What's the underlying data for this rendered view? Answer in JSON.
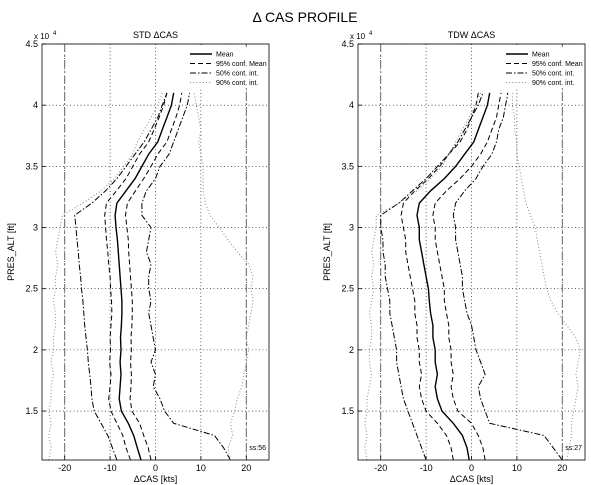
{
  "figure_title": "Δ CAS PROFILE",
  "chart_data": [
    {
      "type": "line",
      "title": "STD ΔCAS",
      "xlabel": "ΔCAS [kts]",
      "ylabel": "PRES_ALT [ft]",
      "y_scale_label": "x 10",
      "y_scale_exponent": "4",
      "xlim": [
        -25,
        25
      ],
      "ylim": [
        11000,
        45000
      ],
      "x_ticks": [
        -20,
        -10,
        0,
        10,
        20
      ],
      "x_tick_labels": [
        "-20",
        "-10",
        "0",
        "10",
        "20"
      ],
      "y_ticks": [
        15000,
        20000,
        25000,
        30000,
        35000,
        40000,
        45000
      ],
      "y_tick_labels": [
        "1.5",
        "2",
        "2.5",
        "3",
        "3.5",
        "4",
        "4.5"
      ],
      "grid": true,
      "legend_position": "top-right",
      "annotation": "ss:56",
      "vlines": [
        -20,
        20
      ],
      "legend": [
        "Mean",
        "95% conf. Mean",
        "50% cont. int.",
        "90% cont. int."
      ],
      "alt": [
        11000,
        12000,
        13000,
        14000,
        15000,
        16000,
        17000,
        18000,
        19000,
        20000,
        21000,
        22000,
        23000,
        24000,
        25000,
        26000,
        27000,
        28000,
        29000,
        30000,
        31000,
        32000,
        33000,
        34000,
        35000,
        36000,
        37000,
        38000,
        39000,
        40000,
        41000
      ],
      "series": [
        {
          "name": "Mean",
          "style": "solid",
          "values": [
            -3.2,
            -4,
            -4.8,
            -6,
            -7.5,
            -8,
            -7.8,
            -7.6,
            -7.8,
            -7.6,
            -7.7,
            -7.5,
            -7.4,
            -7.4,
            -7.6,
            -7.8,
            -8,
            -8.2,
            -8.4,
            -8.7,
            -8.9,
            -8.5,
            -6.5,
            -4.5,
            -3,
            -1.5,
            0.5,
            1.5,
            2.5,
            3.5,
            4
          ]
        },
        {
          "name": "95% conf. Mean",
          "style": "dash",
          "values": [
            -5.5,
            -6.5,
            -7.2,
            -8.5,
            -9.8,
            -10.3,
            -10,
            -9.8,
            -10.1,
            -9.9,
            -10,
            -9.8,
            -9.6,
            -9.7,
            -9.9,
            -10,
            -10.3,
            -10.5,
            -10.8,
            -11,
            -11.2,
            -10.8,
            -8.6,
            -6.5,
            -5,
            -3.5,
            -1.5,
            -0.3,
            0.8,
            1.8,
            2.5
          ]
        },
        {
          "name": "95% conf. Mean",
          "style": "dash",
          "values": [
            -1,
            -1.6,
            -2.6,
            -3.5,
            -5.2,
            -5.6,
            -5.4,
            -5.3,
            -5.5,
            -5.3,
            -5.4,
            -5.2,
            -5.1,
            -5.1,
            -5.3,
            -5.5,
            -5.7,
            -5.9,
            -6,
            -6.3,
            -6.6,
            -6.2,
            -4.4,
            -2.6,
            -1,
            0.5,
            2.5,
            3.5,
            4.5,
            5.3,
            5.8
          ]
        },
        {
          "name": "50% cont. int.",
          "style": "dashdot",
          "values": [
            -8.5,
            -9.5,
            -10.5,
            -12,
            -13.5,
            -14,
            -14.2,
            -14.5,
            -14.8,
            -15,
            -15.3,
            -15.6,
            -15.8,
            -16,
            -16.3,
            -16.5,
            -16.8,
            -17,
            -17.3,
            -17.5,
            -17.8,
            -14,
            -11,
            -8.5,
            -6.5,
            -4.5,
            -2.5,
            -1,
            0.5,
            1.5,
            2.5
          ]
        },
        {
          "name": "50% cont. int.",
          "style": "dashdot",
          "values": [
            16.5,
            15,
            13,
            4,
            2,
            1,
            -0.5,
            0,
            -1,
            0,
            -0.5,
            -1,
            -1.5,
            -1,
            -1.5,
            -1.5,
            -1,
            -2,
            -1.5,
            -1,
            -3,
            -3,
            -2,
            0,
            1,
            3,
            4,
            5,
            6,
            7,
            7.5
          ]
        },
        {
          "name": "90% cont. int.",
          "style": "dot",
          "values": [
            -23.5,
            -23,
            -23.5,
            -23,
            -23.5,
            -23,
            -23,
            -22.5,
            -23,
            -22.5,
            -22.5,
            -22,
            -22,
            -22.5,
            -22,
            -22,
            -21.5,
            -22,
            -21.5,
            -21,
            -20.5,
            -16,
            -12,
            -9,
            -7,
            -5,
            -4,
            -2.5,
            -1,
            0.5,
            1.5
          ]
        },
        {
          "name": "90% cont. int.",
          "style": "dot",
          "values": [
            16.5,
            16,
            17,
            16.5,
            17.5,
            18,
            19,
            19.5,
            20,
            20.5,
            20,
            20.5,
            21,
            21.5,
            21,
            21.5,
            20.5,
            18,
            16,
            14,
            12,
            11,
            10.5,
            10.5,
            10.5,
            10,
            9.5,
            10,
            9.5,
            9,
            8.5
          ]
        }
      ]
    },
    {
      "type": "line",
      "title": "TDW ΔCAS",
      "xlabel": "ΔCAS [kts]",
      "ylabel": "PRES_ALT [ft]",
      "y_scale_label": "x 10",
      "y_scale_exponent": "4",
      "xlim": [
        -25,
        25
      ],
      "ylim": [
        11000,
        45000
      ],
      "x_ticks": [
        -20,
        -10,
        0,
        10,
        20
      ],
      "x_tick_labels": [
        "-20",
        "-10",
        "0",
        "10",
        "20"
      ],
      "y_ticks": [
        15000,
        20000,
        25000,
        30000,
        35000,
        40000,
        45000
      ],
      "y_tick_labels": [
        "1.5",
        "2",
        "2.5",
        "3",
        "3.5",
        "4",
        "4.5"
      ],
      "grid": true,
      "legend_position": "top-right",
      "annotation": "ss:27",
      "vlines": [
        -20,
        20
      ],
      "legend": [
        "Mean",
        "95% conf. Mean",
        "50% cont. int.",
        "90% cont. int."
      ],
      "alt": [
        11000,
        12000,
        13000,
        14000,
        15000,
        16000,
        17000,
        18000,
        19000,
        20000,
        21000,
        22000,
        23000,
        24000,
        25000,
        26000,
        27000,
        28000,
        29000,
        30000,
        31000,
        32000,
        33000,
        34000,
        35000,
        36000,
        37000,
        38000,
        39000,
        40000,
        41000
      ],
      "series": [
        {
          "name": "Mean",
          "style": "solid",
          "values": [
            -0.5,
            -1,
            -2,
            -4,
            -6.5,
            -7.5,
            -8,
            -7.5,
            -8,
            -8,
            -8.5,
            -8.5,
            -9,
            -9.3,
            -9.5,
            -10,
            -10.5,
            -11,
            -11.5,
            -11.5,
            -12,
            -11.5,
            -9,
            -6,
            -3.5,
            -1.5,
            0.5,
            1.5,
            2.5,
            3.5,
            4
          ]
        },
        {
          "name": "95% conf. Mean",
          "style": "dash",
          "values": [
            -4,
            -4.5,
            -5.5,
            -7.5,
            -10,
            -11,
            -11.5,
            -11,
            -11.5,
            -11.5,
            -12,
            -12,
            -12.5,
            -12.5,
            -13,
            -13.5,
            -14,
            -14.5,
            -14.5,
            -15,
            -15.5,
            -15,
            -12.5,
            -9.5,
            -7,
            -5,
            -2.5,
            -1,
            0,
            1,
            1.5
          ]
        },
        {
          "name": "95% conf. Mean",
          "style": "dash",
          "values": [
            3,
            2.5,
            1.5,
            0,
            -3,
            -4,
            -4.5,
            -4,
            -4.5,
            -4.5,
            -5,
            -5,
            -5.5,
            -6,
            -6,
            -6.5,
            -7,
            -7.5,
            -8,
            -8,
            -8.5,
            -8,
            -5.5,
            -2.5,
            0,
            2,
            3.5,
            4.5,
            5.5,
            6,
            6.5
          ]
        },
        {
          "name": "50% cont. int.",
          "style": "dashdot",
          "values": [
            -10,
            -11,
            -12,
            -13,
            -14,
            -15,
            -15.5,
            -16,
            -16.5,
            -16.5,
            -17,
            -17.5,
            -18,
            -18,
            -18.5,
            -19,
            -19,
            -19.5,
            -19.5,
            -20,
            -20,
            -16,
            -13,
            -10,
            -7.5,
            -5,
            -3,
            -1.5,
            0,
            1.5,
            2.5
          ]
        },
        {
          "name": "50% cont. int.",
          "style": "dashdot",
          "values": [
            20,
            18,
            16,
            4,
            3,
            2,
            1.5,
            3,
            2,
            1,
            0.5,
            0,
            -1,
            -1.5,
            -2,
            -2,
            -2.5,
            -3,
            -3.5,
            -3.5,
            -4,
            -3.5,
            -1.5,
            1,
            2.5,
            4.5,
            5.5,
            6,
            7,
            7.5,
            8
          ]
        },
        {
          "name": "90% cont. int.",
          "style": "dot",
          "values": [
            -23,
            -23.5,
            -23,
            -23.5,
            -23,
            -23,
            -22.5,
            -22,
            -22.5,
            -22.5,
            -22,
            -22,
            -22.5,
            -22,
            -21.5,
            -22,
            -21.5,
            -22,
            -21.5,
            -21,
            -21,
            -16,
            -12,
            -9,
            -6.5,
            -5,
            -3.5,
            -2,
            -0.5,
            1,
            2
          ]
        },
        {
          "name": "90% cont. int.",
          "style": "dot",
          "values": [
            21,
            21.5,
            22,
            22,
            22.5,
            23,
            23.5,
            23,
            23.5,
            24,
            23,
            21,
            19,
            17.5,
            16.5,
            16,
            15.5,
            15,
            14.5,
            14,
            13,
            12,
            11.5,
            11,
            10.5,
            10,
            10,
            9.5,
            9.5,
            9,
            9
          ]
        }
      ]
    }
  ]
}
